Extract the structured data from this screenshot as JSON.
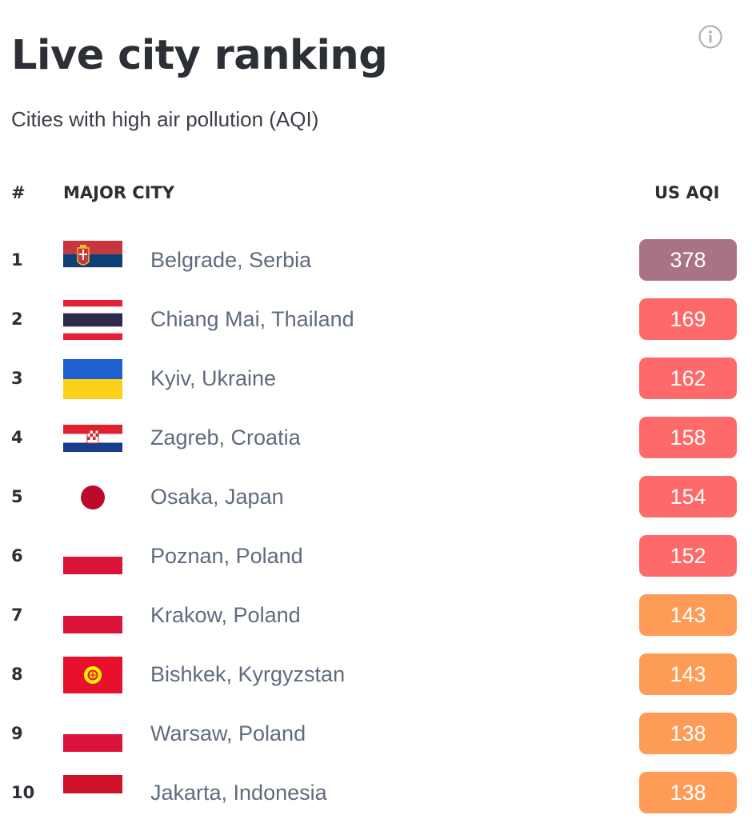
{
  "header": {
    "title": "Live city ranking",
    "subtitle": "Cities with high air pollution (AQI)"
  },
  "table": {
    "columns": {
      "rank": "#",
      "city": "MAJOR CITY",
      "aqi": "US AQI"
    },
    "rows": [
      {
        "rank": "1",
        "city": "Belgrade, Serbia",
        "aqi": "378",
        "level": "hazardous",
        "flag": "serbia-flag-icon"
      },
      {
        "rank": "2",
        "city": "Chiang Mai, Thailand",
        "aqi": "169",
        "level": "unhealthy",
        "flag": "thailand-flag-icon"
      },
      {
        "rank": "3",
        "city": "Kyiv, Ukraine",
        "aqi": "162",
        "level": "unhealthy",
        "flag": "ukraine-flag-icon"
      },
      {
        "rank": "4",
        "city": "Zagreb, Croatia",
        "aqi": "158",
        "level": "unhealthy",
        "flag": "croatia-flag-icon"
      },
      {
        "rank": "5",
        "city": "Osaka, Japan",
        "aqi": "154",
        "level": "unhealthy",
        "flag": "japan-flag-icon"
      },
      {
        "rank": "6",
        "city": "Poznan, Poland",
        "aqi": "152",
        "level": "unhealthy",
        "flag": "poland-flag-icon"
      },
      {
        "rank": "7",
        "city": "Krakow, Poland",
        "aqi": "143",
        "level": "sensitive",
        "flag": "poland-flag-icon"
      },
      {
        "rank": "8",
        "city": "Bishkek, Kyrgyzstan",
        "aqi": "143",
        "level": "sensitive",
        "flag": "kyrgyzstan-flag-icon"
      },
      {
        "rank": "9",
        "city": "Warsaw, Poland",
        "aqi": "138",
        "level": "sensitive",
        "flag": "poland-flag-icon"
      },
      {
        "rank": "10",
        "city": "Jakarta, Indonesia",
        "aqi": "138",
        "level": "sensitive",
        "flag": "indonesia-flag-icon"
      }
    ]
  },
  "colors": {
    "hazardous": "#a87383",
    "unhealthy": "#fe6a69",
    "unhealthy_for_sensitive": "#fe9b57"
  },
  "icons": {
    "info": "info-icon"
  }
}
